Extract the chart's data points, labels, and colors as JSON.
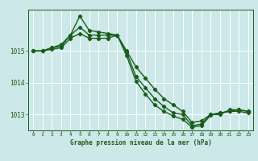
{
  "xlabel": "Graphe pression niveau de la mer (hPa)",
  "bg_color": "#cce8e8",
  "line_color": "#1a5c1a",
  "marker": "D",
  "marker_size": 2.2,
  "line_width": 1.0,
  "grid_color": "#ffffff",
  "axis_label_color": "#1a5c1a",
  "tick_label_color": "#1a5c1a",
  "xlim": [
    -0.5,
    23.5
  ],
  "ylim": [
    1012.5,
    1016.3
  ],
  "xticks": [
    0,
    1,
    2,
    3,
    4,
    5,
    6,
    7,
    8,
    9,
    10,
    11,
    12,
    13,
    14,
    15,
    16,
    17,
    18,
    19,
    20,
    21,
    22,
    23
  ],
  "yticks": [
    1013,
    1014,
    1015
  ],
  "series": [
    {
      "x": [
        0,
        1,
        2,
        3,
        4,
        5,
        6,
        7,
        8,
        9,
        10,
        11,
        12,
        13,
        14,
        15,
        16,
        17,
        18,
        19,
        20,
        21,
        22,
        23
      ],
      "y": [
        1015.0,
        1015.0,
        1015.1,
        1015.15,
        1015.5,
        1016.1,
        1015.65,
        1015.6,
        1015.55,
        1015.5,
        1015.0,
        1014.5,
        1014.15,
        1013.8,
        1013.5,
        1013.3,
        1013.1,
        1012.75,
        1012.8,
        1013.0,
        1013.0,
        1013.15,
        1013.15,
        1013.1
      ]
    },
    {
      "x": [
        0,
        1,
        2,
        3,
        4,
        5,
        6,
        7,
        8,
        9,
        10,
        11,
        12,
        13,
        14,
        15,
        16,
        17,
        18,
        19,
        20,
        21,
        22,
        23
      ],
      "y": [
        1015.0,
        1015.0,
        1015.1,
        1015.2,
        1015.5,
        1015.75,
        1015.5,
        1015.5,
        1015.5,
        1015.5,
        1014.95,
        1014.2,
        1013.85,
        1013.5,
        1013.25,
        1013.05,
        1013.0,
        1012.65,
        1012.7,
        1013.0,
        1013.05,
        1013.1,
        1013.15,
        1013.1
      ]
    },
    {
      "x": [
        0,
        1,
        2,
        3,
        4,
        5,
        6,
        7,
        8,
        9,
        10,
        11,
        12,
        13,
        14,
        15,
        16,
        17,
        18,
        19,
        20,
        21,
        22,
        23
      ],
      "y": [
        1015.0,
        1015.0,
        1015.05,
        1015.1,
        1015.4,
        1015.55,
        1015.4,
        1015.4,
        1015.4,
        1015.5,
        1014.85,
        1014.05,
        1013.65,
        1013.3,
        1013.1,
        1012.95,
        1012.85,
        1012.6,
        1012.65,
        1012.98,
        1013.05,
        1013.1,
        1013.1,
        1013.05
      ]
    }
  ]
}
